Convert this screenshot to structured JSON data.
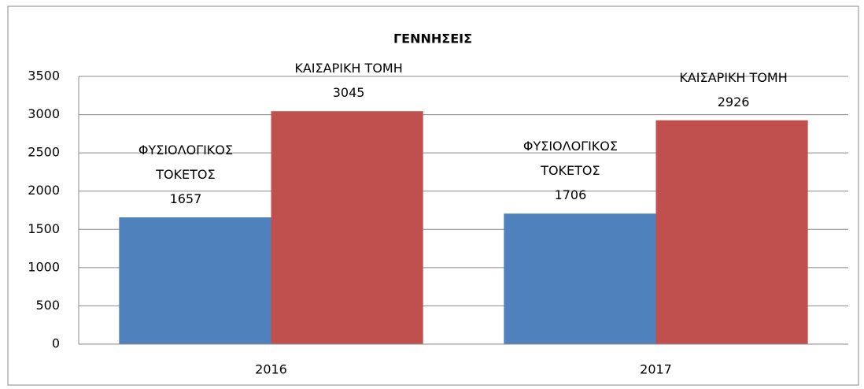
{
  "chart_data": {
    "type": "bar",
    "title": "ΓΕΝΝΗΣΕΙΣ",
    "categories": [
      "2016",
      "2017"
    ],
    "series": [
      {
        "name": "ΦΥΣΙΟΛΟΓΙΚΟΣ ΤΟΚΕΤΟΣ",
        "color": "#4f81bd",
        "values": [
          1657,
          1706
        ]
      },
      {
        "name": "ΚΑΙΣΑΡΙΚΗ ΤΟΜΗ",
        "color": "#c0504d",
        "values": [
          3045,
          2926
        ]
      }
    ],
    "ylim": [
      0,
      3500
    ],
    "yticks": [
      0,
      500,
      1000,
      1500,
      2000,
      2500,
      3000,
      3500
    ],
    "grid": true
  }
}
